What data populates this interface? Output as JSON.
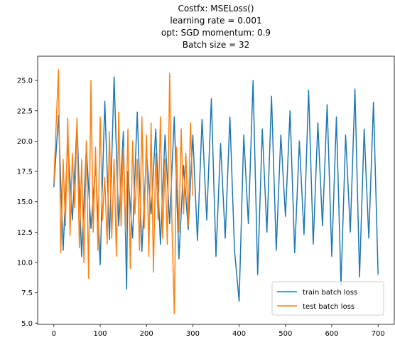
{
  "chart_data": {
    "type": "line",
    "title_lines": [
      "Costfx: MSELoss()",
      "learning rate = 0.001",
      "opt: SGD momentum: 0.9",
      "Batch size = 32"
    ],
    "xlim": [
      -35,
      735
    ],
    "ylim": [
      4.9,
      27.0
    ],
    "x_ticks": [
      0,
      100,
      200,
      300,
      400,
      500,
      600,
      700
    ],
    "y_ticks": [
      5.0,
      7.5,
      10.0,
      12.5,
      15.0,
      17.5,
      20.0,
      22.5,
      25.0
    ],
    "y_tick_labels": [
      "5.0",
      "7.5",
      "10.0",
      "12.5",
      "15.0",
      "17.5",
      "20.0",
      "22.5",
      "25.0"
    ],
    "legend_position": "lower right",
    "series": [
      {
        "name": "train batch loss",
        "color": "#1f77b4",
        "x": [
          0,
          10,
          20,
          30,
          40,
          50,
          60,
          70,
          80,
          90,
          100,
          110,
          120,
          130,
          140,
          150,
          157,
          160,
          170,
          180,
          190,
          200,
          210,
          220,
          230,
          240,
          250,
          260,
          270,
          280,
          290,
          300,
          310,
          320,
          330,
          340,
          350,
          360,
          370,
          380,
          390,
          400,
          410,
          420,
          430,
          440,
          450,
          460,
          470,
          480,
          490,
          500,
          510,
          520,
          530,
          540,
          550,
          560,
          570,
          580,
          590,
          600,
          610,
          620,
          630,
          640,
          650,
          660,
          670,
          680,
          690,
          700
        ],
        "y": [
          16.2,
          22.1,
          11.0,
          20.0,
          13.5,
          21.5,
          10.5,
          19.5,
          12.8,
          18.0,
          9.8,
          23.3,
          11.9,
          25.3,
          13.0,
          20.8,
          7.8,
          17.5,
          12.0,
          22.4,
          10.9,
          19.1,
          14.0,
          21.0,
          11.5,
          20.5,
          13.2,
          22.0,
          10.3,
          18.0,
          12.7,
          20.5,
          11.8,
          21.8,
          13.5,
          23.5,
          10.5,
          19.8,
          12.0,
          22.0,
          11.0,
          6.8,
          20.5,
          13.2,
          25.0,
          9.0,
          21.0,
          12.5,
          23.7,
          11.0,
          20.5,
          13.8,
          22.5,
          10.8,
          20.0,
          12.3,
          24.2,
          11.5,
          21.5,
          13.0,
          23.0,
          10.5,
          22.0,
          8.1,
          20.5,
          12.5,
          24.3,
          8.8,
          21.0,
          12.0,
          23.2,
          9.0
        ]
      },
      {
        "name": "test batch loss",
        "color": "#ff7f0e",
        "x": [
          0,
          5,
          10,
          15,
          20,
          25,
          30,
          35,
          40,
          45,
          50,
          55,
          60,
          65,
          70,
          75,
          80,
          85,
          90,
          95,
          100,
          105,
          110,
          115,
          120,
          125,
          130,
          135,
          140,
          145,
          150,
          155,
          160,
          165,
          170,
          175,
          180,
          185,
          190,
          195,
          200,
          205,
          210,
          215,
          220,
          225,
          230,
          235,
          240,
          245,
          250,
          255,
          260,
          265,
          270,
          275,
          280,
          285,
          290,
          295,
          300
        ],
        "y": [
          16.5,
          21.5,
          25.9,
          10.8,
          18.5,
          13.0,
          21.9,
          12.2,
          19.0,
          14.5,
          21.9,
          11.2,
          18.5,
          10.0,
          20.0,
          8.7,
          25.0,
          12.5,
          19.5,
          11.0,
          22.0,
          13.5,
          17.0,
          11.5,
          20.8,
          12.0,
          18.5,
          10.5,
          22.4,
          13.0,
          19.5,
          12.5,
          21.0,
          9.5,
          20.0,
          14.0,
          18.5,
          11.0,
          22.0,
          12.8,
          20.5,
          10.5,
          21.5,
          9.2,
          19.0,
          13.5,
          22.0,
          12.0,
          18.5,
          11.5,
          25.6,
          13.0,
          5.8,
          19.5,
          12.5,
          21.0,
          14.0,
          19.0,
          13.0,
          21.5,
          15.5
        ]
      }
    ]
  }
}
